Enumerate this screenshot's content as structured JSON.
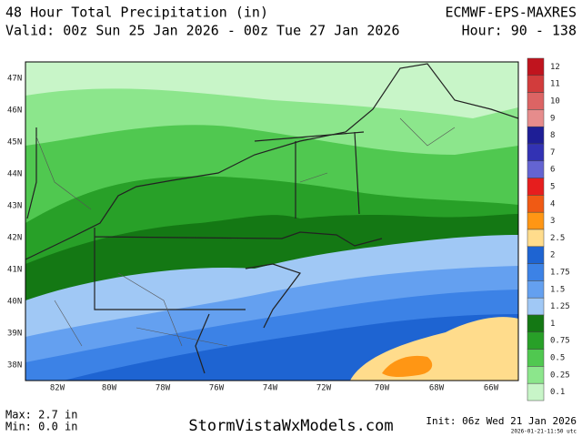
{
  "header": {
    "title": "48 Hour Total Precipitation (in)",
    "model": "ECMWF-EPS-MAXRES",
    "valid": "Valid: 00z Sun 25 Jan 2026 - 00z Tue 27 Jan 2026",
    "hours": "Hour: 90 - 138"
  },
  "map": {
    "lat_labels": [
      "47N",
      "46N",
      "45N",
      "44N",
      "43N",
      "42N",
      "41N",
      "40N",
      "39N",
      "38N"
    ],
    "lon_labels": [
      "82W",
      "80W",
      "78W",
      "76W",
      "74W",
      "72W",
      "70W",
      "68W",
      "66W"
    ]
  },
  "colorbar": {
    "levels": [
      {
        "value": 12,
        "color": "#c0141e"
      },
      {
        "value": 11,
        "color": "#d23c3c"
      },
      {
        "value": 10,
        "color": "#dc6464"
      },
      {
        "value": 9,
        "color": "#e68c8c"
      },
      {
        "value": 8,
        "color": "#1e1e96"
      },
      {
        "value": 7,
        "color": "#3232b4"
      },
      {
        "value": 6,
        "color": "#6464d2"
      },
      {
        "value": 5,
        "color": "#e61e1e"
      },
      {
        "value": 4,
        "color": "#f05a14"
      },
      {
        "value": 3,
        "color": "#ff9614"
      },
      {
        "value": 2.5,
        "color": "#ffdc8c"
      },
      {
        "value": 2,
        "color": "#1e64d2"
      },
      {
        "value": 1.75,
        "color": "#3c82e6"
      },
      {
        "value": 1.5,
        "color": "#64a0f0"
      },
      {
        "value": 1.25,
        "color": "#a0c8f5"
      },
      {
        "value": 1,
        "color": "#147814"
      },
      {
        "value": 0.75,
        "color": "#28a028"
      },
      {
        "value": 0.5,
        "color": "#50c850"
      },
      {
        "value": 0.25,
        "color": "#8ce68c"
      },
      {
        "value": 0.1,
        "color": "#c8f5c8"
      }
    ]
  },
  "footer": {
    "max": "Max: 2.7 in",
    "min": "Min: 0.0 in",
    "site": "StormVistaWxModels.com",
    "init": "Init: 06z Wed 21 Jan 2026",
    "stamp": "2026-01-21-11:50 utc"
  }
}
